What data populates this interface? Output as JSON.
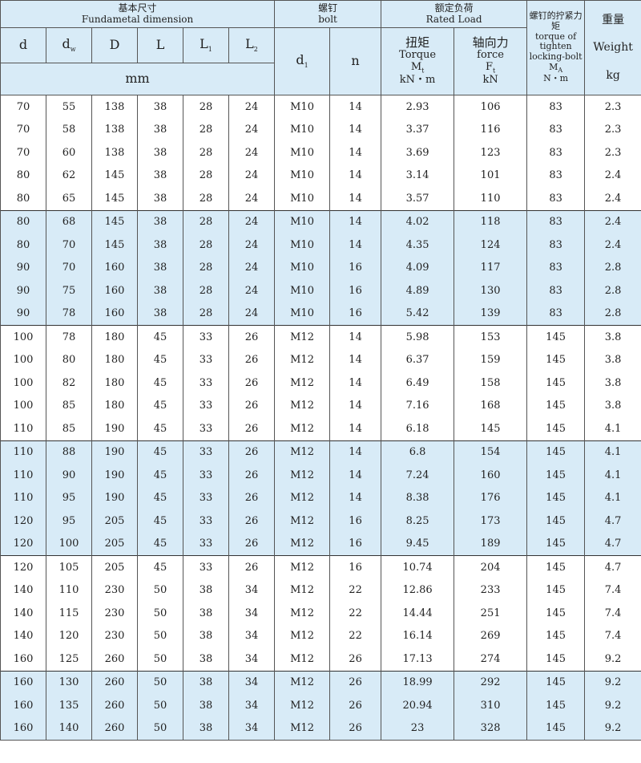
{
  "header": {
    "basic_cn": "基本尺寸",
    "basic_en": "Fundametal dimension",
    "bolt_cn": "螺钉",
    "bolt_en": "bolt",
    "load_cn": "额定负荷",
    "load_en": "Rated Load",
    "tighten_cn": "螺钉的拧紧力矩",
    "tighten_en": "torque of tighten locking-bolt",
    "tighten_sym": "M",
    "tighten_sub": "A",
    "tighten_unit": "N・m",
    "weight_cn": "重量",
    "weight_en": "Weight",
    "weight_unit": "kg",
    "d": "d",
    "dw": "d",
    "dw_sub": "w",
    "D": "D",
    "L": "L",
    "L1": "L",
    "L1_sub": "1",
    "L2": "L",
    "L2_sub": "2",
    "mm": "mm",
    "d1": "d",
    "d1_sub": "1",
    "n": "n",
    "torque_cn": "扭矩",
    "torque_en": "Torque",
    "torque_sym": "M",
    "torque_sub": "t",
    "torque_unit": "kN・m",
    "force_cn": "轴向力",
    "force_en": "force",
    "force_sym": "F",
    "force_sub": "t",
    "force_unit": "kN"
  },
  "band_color": "#d8ebf7",
  "rows": [
    [
      "70",
      "55",
      "138",
      "38",
      "28",
      "24",
      "M10",
      "14",
      "2.93",
      "106",
      "83",
      "2.3"
    ],
    [
      "70",
      "58",
      "138",
      "38",
      "28",
      "24",
      "M10",
      "14",
      "3.37",
      "116",
      "83",
      "2.3"
    ],
    [
      "70",
      "60",
      "138",
      "38",
      "28",
      "24",
      "M10",
      "14",
      "3.69",
      "123",
      "83",
      "2.3"
    ],
    [
      "80",
      "62",
      "145",
      "38",
      "28",
      "24",
      "M10",
      "14",
      "3.14",
      "101",
      "83",
      "2.4"
    ],
    [
      "80",
      "65",
      "145",
      "38",
      "28",
      "24",
      "M10",
      "14",
      "3.57",
      "110",
      "83",
      "2.4"
    ],
    [
      "80",
      "68",
      "145",
      "38",
      "28",
      "24",
      "M10",
      "14",
      "4.02",
      "118",
      "83",
      "2.4"
    ],
    [
      "80",
      "70",
      "145",
      "38",
      "28",
      "24",
      "M10",
      "14",
      "4.35",
      "124",
      "83",
      "2.4"
    ],
    [
      "90",
      "70",
      "160",
      "38",
      "28",
      "24",
      "M10",
      "16",
      "4.09",
      "117",
      "83",
      "2.8"
    ],
    [
      "90",
      "75",
      "160",
      "38",
      "28",
      "24",
      "M10",
      "16",
      "4.89",
      "130",
      "83",
      "2.8"
    ],
    [
      "90",
      "78",
      "160",
      "38",
      "28",
      "24",
      "M10",
      "16",
      "5.42",
      "139",
      "83",
      "2.8"
    ],
    [
      "100",
      "78",
      "180",
      "45",
      "33",
      "26",
      "M12",
      "14",
      "5.98",
      "153",
      "145",
      "3.8"
    ],
    [
      "100",
      "80",
      "180",
      "45",
      "33",
      "26",
      "M12",
      "14",
      "6.37",
      "159",
      "145",
      "3.8"
    ],
    [
      "100",
      "82",
      "180",
      "45",
      "33",
      "26",
      "M12",
      "14",
      "6.49",
      "158",
      "145",
      "3.8"
    ],
    [
      "100",
      "85",
      "180",
      "45",
      "33",
      "26",
      "M12",
      "14",
      "7.16",
      "168",
      "145",
      "3.8"
    ],
    [
      "110",
      "85",
      "190",
      "45",
      "33",
      "26",
      "M12",
      "14",
      "6.18",
      "145",
      "145",
      "4.1"
    ],
    [
      "110",
      "88",
      "190",
      "45",
      "33",
      "26",
      "M12",
      "14",
      "6.8",
      "154",
      "145",
      "4.1"
    ],
    [
      "110",
      "90",
      "190",
      "45",
      "33",
      "26",
      "M12",
      "14",
      "7.24",
      "160",
      "145",
      "4.1"
    ],
    [
      "110",
      "95",
      "190",
      "45",
      "33",
      "26",
      "M12",
      "14",
      "8.38",
      "176",
      "145",
      "4.1"
    ],
    [
      "120",
      "95",
      "205",
      "45",
      "33",
      "26",
      "M12",
      "16",
      "8.25",
      "173",
      "145",
      "4.7"
    ],
    [
      "120",
      "100",
      "205",
      "45",
      "33",
      "26",
      "M12",
      "16",
      "9.45",
      "189",
      "145",
      "4.7"
    ],
    [
      "120",
      "105",
      "205",
      "45",
      "33",
      "26",
      "M12",
      "16",
      "10.74",
      "204",
      "145",
      "4.7"
    ],
    [
      "140",
      "110",
      "230",
      "50",
      "38",
      "34",
      "M12",
      "22",
      "12.86",
      "233",
      "145",
      "7.4"
    ],
    [
      "140",
      "115",
      "230",
      "50",
      "38",
      "34",
      "M12",
      "22",
      "14.44",
      "251",
      "145",
      "7.4"
    ],
    [
      "140",
      "120",
      "230",
      "50",
      "38",
      "34",
      "M12",
      "22",
      "16.14",
      "269",
      "145",
      "7.4"
    ],
    [
      "160",
      "125",
      "260",
      "50",
      "38",
      "34",
      "M12",
      "26",
      "17.13",
      "274",
      "145",
      "9.2"
    ],
    [
      "160",
      "130",
      "260",
      "50",
      "38",
      "34",
      "M12",
      "26",
      "18.99",
      "292",
      "145",
      "9.2"
    ],
    [
      "160",
      "135",
      "260",
      "50",
      "38",
      "34",
      "M12",
      "26",
      "20.94",
      "310",
      "145",
      "9.2"
    ],
    [
      "160",
      "140",
      "260",
      "50",
      "38",
      "34",
      "M12",
      "26",
      "23",
      "328",
      "145",
      "9.2"
    ]
  ]
}
